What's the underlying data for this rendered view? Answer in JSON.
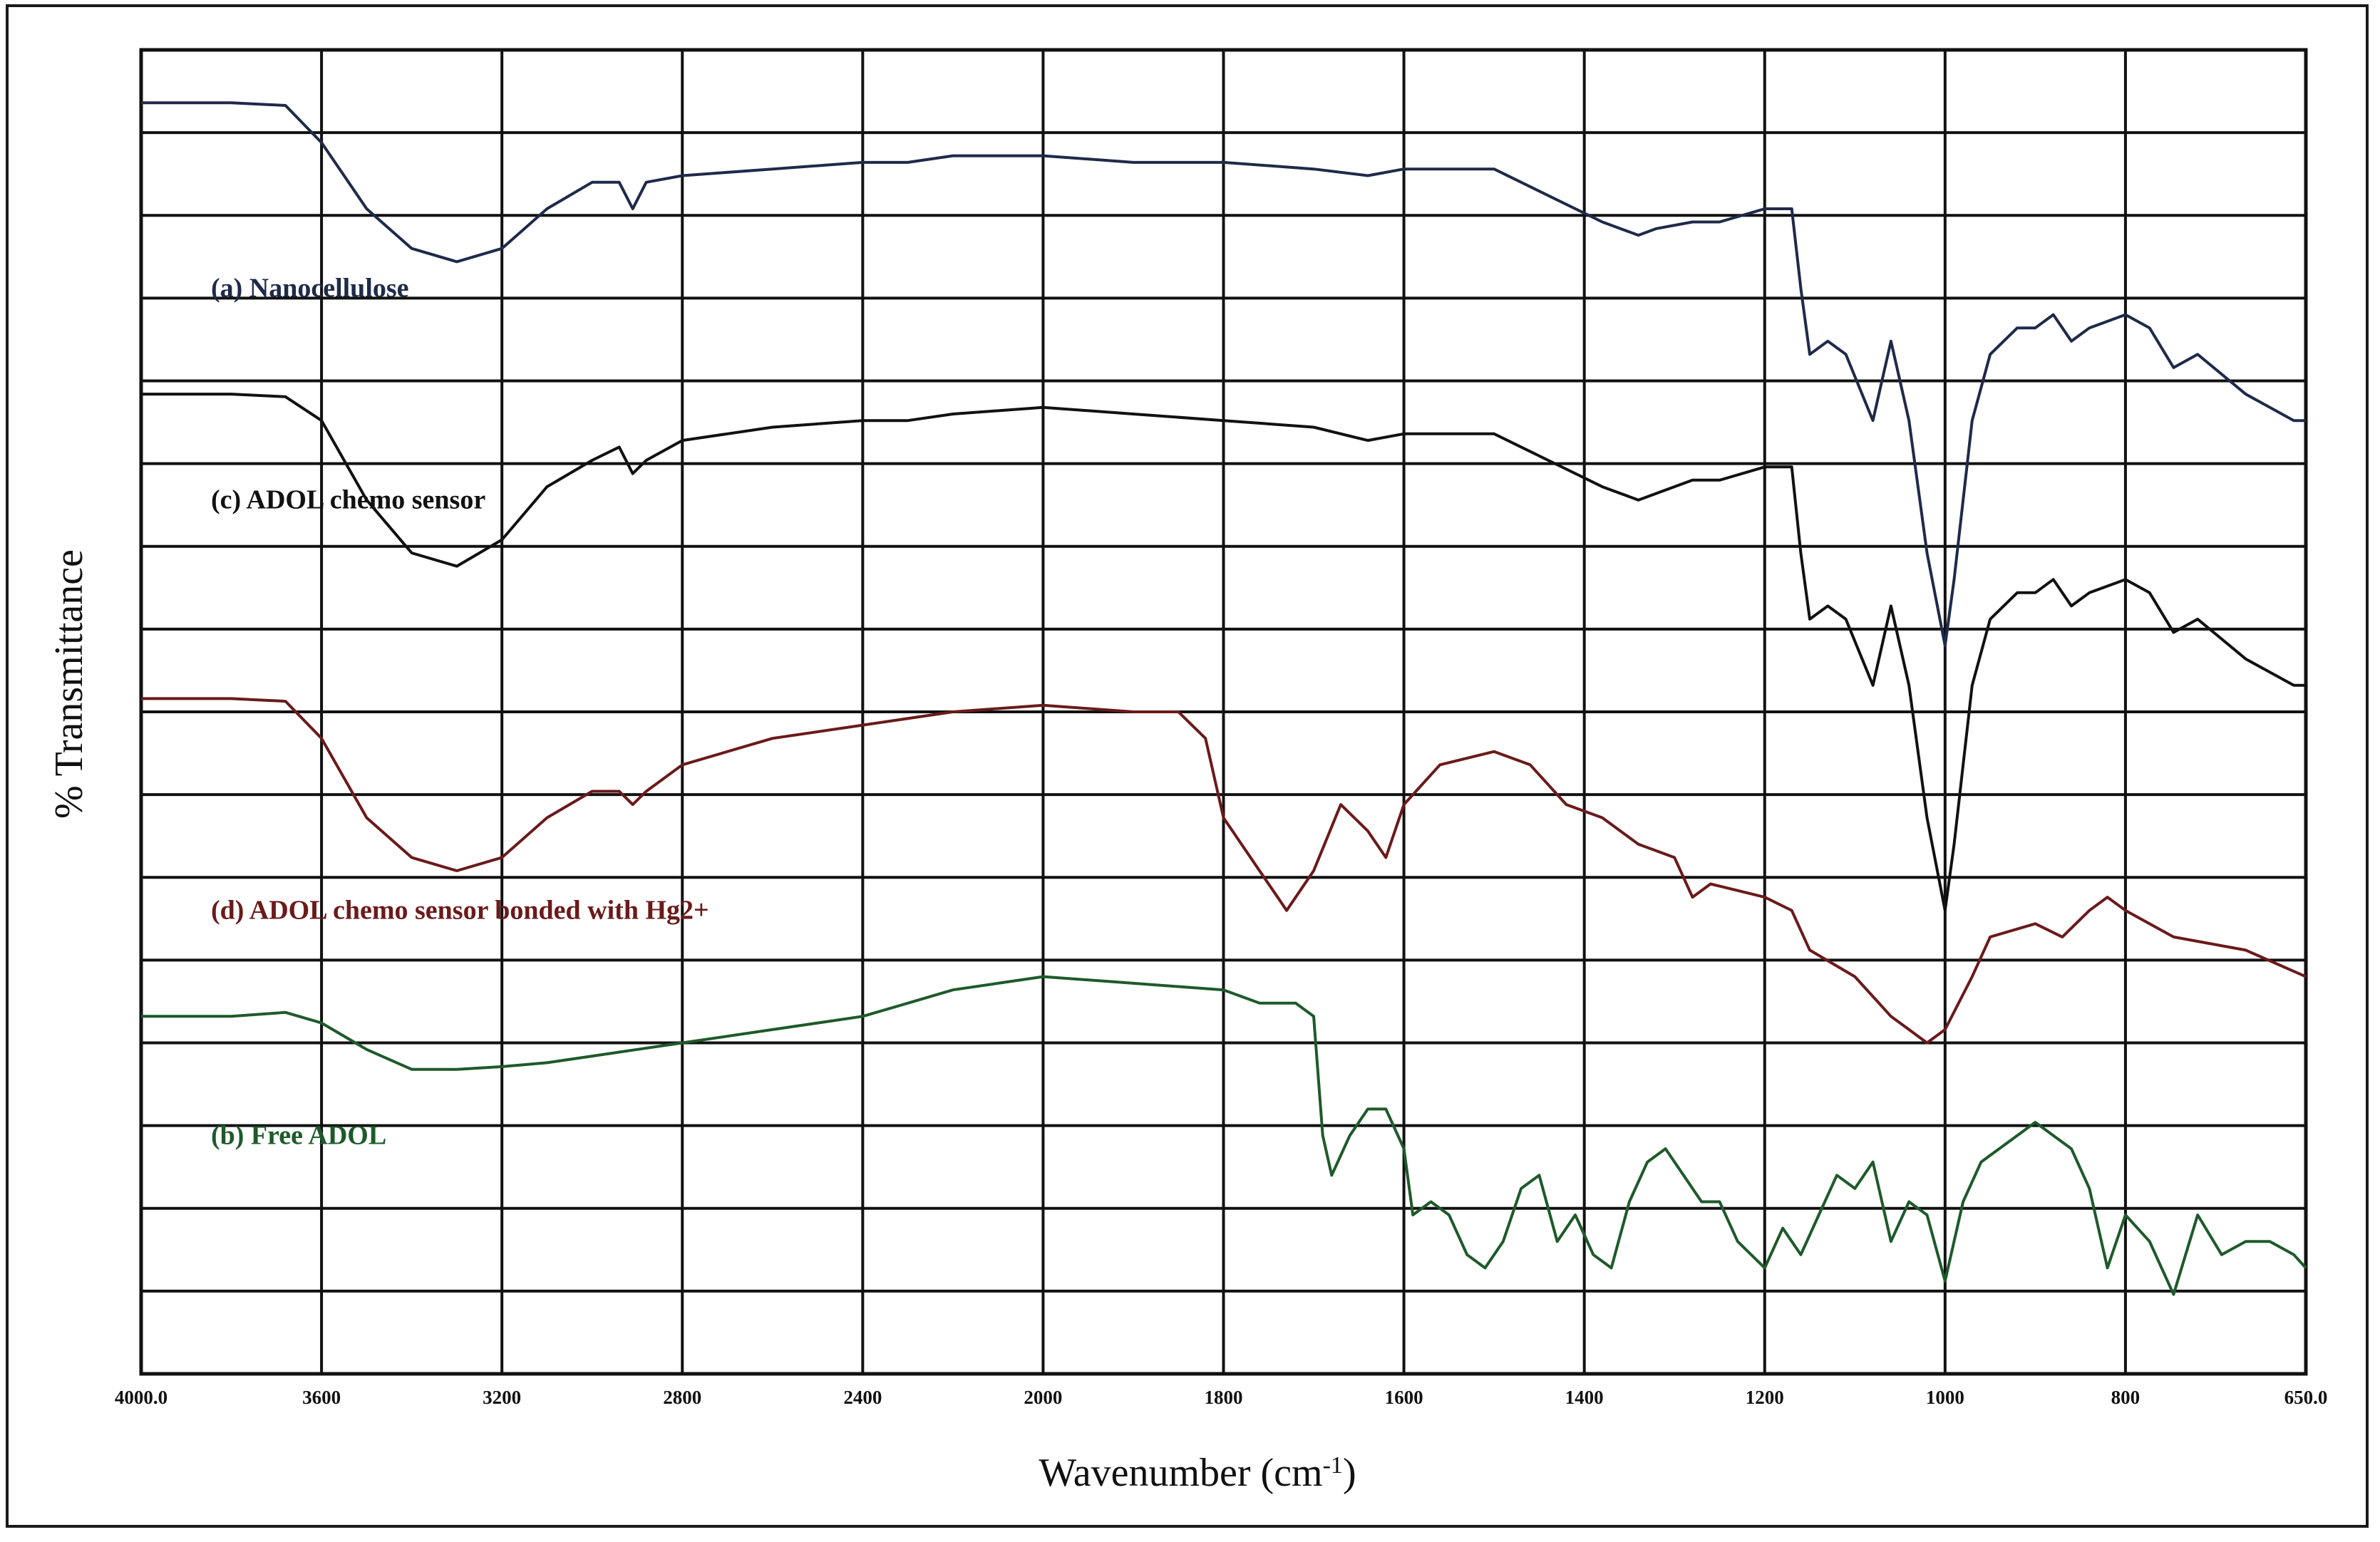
{
  "chart_data": {
    "type": "line",
    "xlabel": "Wavenumber (cm",
    "xlabel_sup": "-1",
    "xlabel_close": ")",
    "ylabel": "% Transmittance",
    "xlim": [
      4000,
      650
    ],
    "x_reversed": true,
    "grid": true,
    "x_ticks": [
      4000,
      3600,
      3200,
      2800,
      2400,
      2000,
      1800,
      1600,
      1400,
      1200,
      1000,
      800,
      650
    ],
    "x_tick_labels": [
      "4000.0",
      "3600",
      "3200",
      "2800",
      "2400",
      "2000",
      "1800",
      "1600",
      "1400",
      "1200",
      "1000",
      "800",
      "650.0"
    ],
    "y_tick_count": 16,
    "series": [
      {
        "name": "(a) Nanocellulose",
        "color": "#1f2a4a",
        "label_anchor_x": 3940,
        "label_level": 0.82,
        "points": [
          [
            4000,
            0.96
          ],
          [
            3800,
            0.96
          ],
          [
            3680,
            0.958
          ],
          [
            3600,
            0.93
          ],
          [
            3500,
            0.88
          ],
          [
            3400,
            0.85
          ],
          [
            3300,
            0.84
          ],
          [
            3200,
            0.85
          ],
          [
            3100,
            0.88
          ],
          [
            3000,
            0.9
          ],
          [
            2940,
            0.9
          ],
          [
            2910,
            0.88
          ],
          [
            2880,
            0.9
          ],
          [
            2800,
            0.905
          ],
          [
            2600,
            0.91
          ],
          [
            2400,
            0.915
          ],
          [
            2300,
            0.915
          ],
          [
            2200,
            0.92
          ],
          [
            2000,
            0.92
          ],
          [
            1900,
            0.915
          ],
          [
            1800,
            0.915
          ],
          [
            1700,
            0.91
          ],
          [
            1640,
            0.905
          ],
          [
            1600,
            0.91
          ],
          [
            1500,
            0.91
          ],
          [
            1440,
            0.89
          ],
          [
            1380,
            0.87
          ],
          [
            1340,
            0.86
          ],
          [
            1320,
            0.865
          ],
          [
            1280,
            0.87
          ],
          [
            1250,
            0.87
          ],
          [
            1200,
            0.88
          ],
          [
            1170,
            0.88
          ],
          [
            1160,
            0.82
          ],
          [
            1150,
            0.77
          ],
          [
            1130,
            0.78
          ],
          [
            1110,
            0.77
          ],
          [
            1080,
            0.72
          ],
          [
            1060,
            0.78
          ],
          [
            1040,
            0.72
          ],
          [
            1020,
            0.62
          ],
          [
            1000,
            0.55
          ],
          [
            990,
            0.6
          ],
          [
            970,
            0.72
          ],
          [
            950,
            0.77
          ],
          [
            920,
            0.79
          ],
          [
            900,
            0.79
          ],
          [
            880,
            0.8
          ],
          [
            860,
            0.78
          ],
          [
            840,
            0.79
          ],
          [
            800,
            0.8
          ],
          [
            780,
            0.79
          ],
          [
            760,
            0.76
          ],
          [
            740,
            0.77
          ],
          [
            700,
            0.74
          ],
          [
            660,
            0.72
          ],
          [
            650,
            0.72
          ]
        ]
      },
      {
        "name": "(c) ADOL chemo sensor",
        "color": "#111111",
        "label_anchor_x": 3940,
        "label_level": 0.66,
        "points": [
          [
            4000,
            0.74
          ],
          [
            3800,
            0.74
          ],
          [
            3680,
            0.738
          ],
          [
            3600,
            0.72
          ],
          [
            3500,
            0.66
          ],
          [
            3400,
            0.62
          ],
          [
            3300,
            0.61
          ],
          [
            3200,
            0.63
          ],
          [
            3100,
            0.67
          ],
          [
            3000,
            0.69
          ],
          [
            2940,
            0.7
          ],
          [
            2910,
            0.68
          ],
          [
            2880,
            0.69
          ],
          [
            2800,
            0.705
          ],
          [
            2600,
            0.715
          ],
          [
            2400,
            0.72
          ],
          [
            2300,
            0.72
          ],
          [
            2200,
            0.725
          ],
          [
            2000,
            0.73
          ],
          [
            1900,
            0.725
          ],
          [
            1800,
            0.72
          ],
          [
            1700,
            0.715
          ],
          [
            1640,
            0.705
          ],
          [
            1600,
            0.71
          ],
          [
            1500,
            0.71
          ],
          [
            1440,
            0.69
          ],
          [
            1380,
            0.67
          ],
          [
            1340,
            0.66
          ],
          [
            1320,
            0.665
          ],
          [
            1280,
            0.675
          ],
          [
            1250,
            0.675
          ],
          [
            1200,
            0.685
          ],
          [
            1170,
            0.685
          ],
          [
            1160,
            0.62
          ],
          [
            1150,
            0.57
          ],
          [
            1130,
            0.58
          ],
          [
            1110,
            0.57
          ],
          [
            1080,
            0.52
          ],
          [
            1060,
            0.58
          ],
          [
            1040,
            0.52
          ],
          [
            1020,
            0.42
          ],
          [
            1000,
            0.35
          ],
          [
            990,
            0.4
          ],
          [
            970,
            0.52
          ],
          [
            950,
            0.57
          ],
          [
            920,
            0.59
          ],
          [
            900,
            0.59
          ],
          [
            880,
            0.6
          ],
          [
            860,
            0.58
          ],
          [
            840,
            0.59
          ],
          [
            800,
            0.6
          ],
          [
            780,
            0.59
          ],
          [
            760,
            0.56
          ],
          [
            740,
            0.57
          ],
          [
            700,
            0.54
          ],
          [
            660,
            0.52
          ],
          [
            650,
            0.52
          ]
        ]
      },
      {
        "name": "(d) ADOL chemo sensor bonded with Hg2+",
        "color": "#6b1a1a",
        "label_anchor_x": 3940,
        "label_level": 0.35,
        "points": [
          [
            4000,
            0.51
          ],
          [
            3800,
            0.51
          ],
          [
            3680,
            0.508
          ],
          [
            3600,
            0.48
          ],
          [
            3500,
            0.42
          ],
          [
            3400,
            0.39
          ],
          [
            3300,
            0.38
          ],
          [
            3200,
            0.39
          ],
          [
            3100,
            0.42
          ],
          [
            3000,
            0.44
          ],
          [
            2940,
            0.44
          ],
          [
            2910,
            0.43
          ],
          [
            2880,
            0.44
          ],
          [
            2800,
            0.46
          ],
          [
            2600,
            0.48
          ],
          [
            2400,
            0.49
          ],
          [
            2200,
            0.5
          ],
          [
            2000,
            0.505
          ],
          [
            1900,
            0.5
          ],
          [
            1850,
            0.5
          ],
          [
            1820,
            0.48
          ],
          [
            1800,
            0.42
          ],
          [
            1760,
            0.38
          ],
          [
            1730,
            0.35
          ],
          [
            1700,
            0.38
          ],
          [
            1670,
            0.43
          ],
          [
            1640,
            0.41
          ],
          [
            1620,
            0.39
          ],
          [
            1600,
            0.43
          ],
          [
            1560,
            0.46
          ],
          [
            1500,
            0.47
          ],
          [
            1460,
            0.46
          ],
          [
            1420,
            0.43
          ],
          [
            1380,
            0.42
          ],
          [
            1340,
            0.4
          ],
          [
            1300,
            0.39
          ],
          [
            1280,
            0.36
          ],
          [
            1260,
            0.37
          ],
          [
            1200,
            0.36
          ],
          [
            1170,
            0.35
          ],
          [
            1150,
            0.32
          ],
          [
            1100,
            0.3
          ],
          [
            1060,
            0.27
          ],
          [
            1020,
            0.25
          ],
          [
            1000,
            0.26
          ],
          [
            970,
            0.3
          ],
          [
            950,
            0.33
          ],
          [
            900,
            0.34
          ],
          [
            870,
            0.33
          ],
          [
            840,
            0.35
          ],
          [
            820,
            0.36
          ],
          [
            800,
            0.35
          ],
          [
            760,
            0.33
          ],
          [
            700,
            0.32
          ],
          [
            650,
            0.3
          ]
        ]
      },
      {
        "name": "(b) Free ADOL",
        "color": "#1e5a2a",
        "label_anchor_x": 3940,
        "label_level": 0.18,
        "points": [
          [
            4000,
            0.27
          ],
          [
            3800,
            0.27
          ],
          [
            3680,
            0.273
          ],
          [
            3600,
            0.265
          ],
          [
            3500,
            0.245
          ],
          [
            3400,
            0.23
          ],
          [
            3300,
            0.23
          ],
          [
            3200,
            0.232
          ],
          [
            3100,
            0.235
          ],
          [
            3000,
            0.24
          ],
          [
            2900,
            0.245
          ],
          [
            2800,
            0.25
          ],
          [
            2600,
            0.26
          ],
          [
            2500,
            0.265
          ],
          [
            2400,
            0.27
          ],
          [
            2300,
            0.28
          ],
          [
            2200,
            0.29
          ],
          [
            2100,
            0.295
          ],
          [
            2000,
            0.3
          ],
          [
            1900,
            0.295
          ],
          [
            1800,
            0.29
          ],
          [
            1760,
            0.28
          ],
          [
            1720,
            0.28
          ],
          [
            1700,
            0.27
          ],
          [
            1690,
            0.18
          ],
          [
            1680,
            0.15
          ],
          [
            1660,
            0.18
          ],
          [
            1640,
            0.2
          ],
          [
            1620,
            0.2
          ],
          [
            1600,
            0.17
          ],
          [
            1590,
            0.12
          ],
          [
            1570,
            0.13
          ],
          [
            1550,
            0.12
          ],
          [
            1530,
            0.09
          ],
          [
            1510,
            0.08
          ],
          [
            1490,
            0.1
          ],
          [
            1470,
            0.14
          ],
          [
            1450,
            0.15
          ],
          [
            1430,
            0.1
          ],
          [
            1410,
            0.12
          ],
          [
            1390,
            0.09
          ],
          [
            1370,
            0.08
          ],
          [
            1350,
            0.13
          ],
          [
            1330,
            0.16
          ],
          [
            1310,
            0.17
          ],
          [
            1290,
            0.15
          ],
          [
            1270,
            0.13
          ],
          [
            1250,
            0.13
          ],
          [
            1230,
            0.1
          ],
          [
            1200,
            0.08
          ],
          [
            1180,
            0.11
          ],
          [
            1160,
            0.09
          ],
          [
            1140,
            0.12
          ],
          [
            1120,
            0.15
          ],
          [
            1100,
            0.14
          ],
          [
            1080,
            0.16
          ],
          [
            1060,
            0.1
          ],
          [
            1040,
            0.13
          ],
          [
            1020,
            0.12
          ],
          [
            1000,
            0.07
          ],
          [
            980,
            0.13
          ],
          [
            960,
            0.16
          ],
          [
            940,
            0.17
          ],
          [
            900,
            0.19
          ],
          [
            880,
            0.18
          ],
          [
            860,
            0.17
          ],
          [
            840,
            0.14
          ],
          [
            820,
            0.08
          ],
          [
            800,
            0.12
          ],
          [
            780,
            0.1
          ],
          [
            760,
            0.06
          ],
          [
            740,
            0.12
          ],
          [
            720,
            0.09
          ],
          [
            700,
            0.1
          ],
          [
            680,
            0.1
          ],
          [
            660,
            0.09
          ],
          [
            650,
            0.08
          ]
        ]
      }
    ]
  }
}
